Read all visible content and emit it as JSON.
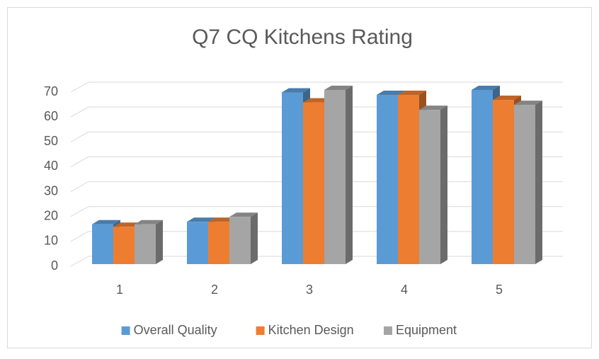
{
  "chart_data": {
    "type": "bar3d",
    "title": "Q7 CQ Kitchens Rating",
    "categories": [
      "1",
      "2",
      "3",
      "4",
      "5"
    ],
    "series": [
      {
        "name": "Overall Quality",
        "color": "#5b9bd5",
        "values": [
          16,
          17,
          69,
          68,
          70
        ]
      },
      {
        "name": "Kitchen Design",
        "color": "#ed7d31",
        "values": [
          15,
          17,
          65,
          68,
          66
        ]
      },
      {
        "name": "Equipment",
        "color": "#a5a5a5",
        "values": [
          16,
          19,
          70,
          62,
          64
        ]
      }
    ],
    "ylim": [
      0,
      70
    ],
    "yticks": [
      0,
      10,
      20,
      30,
      40,
      50,
      60,
      70
    ],
    "grid": true,
    "legend": "bottom"
  }
}
